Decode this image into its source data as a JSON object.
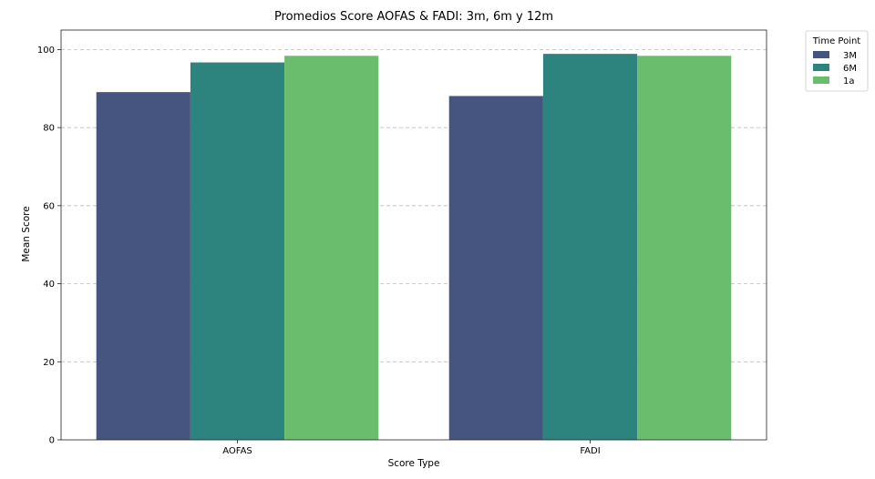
{
  "chart_data": {
    "type": "bar",
    "title": "Promedios Score AOFAS & FADI: 3m, 6m y 12m",
    "xlabel": "Score Type",
    "ylabel": "Mean Score",
    "categories": [
      "AOFAS",
      "FADI"
    ],
    "series": [
      {
        "name": "3M",
        "color": "#46557f",
        "values": [
          89.1,
          88.1
        ]
      },
      {
        "name": "6M",
        "color": "#2d847e",
        "values": [
          96.7,
          98.9
        ]
      },
      {
        "name": "1a",
        "color": "#6bbd6e",
        "values": [
          98.4,
          98.4
        ]
      }
    ],
    "ylim": [
      0,
      105
    ],
    "yticks": [
      0,
      20,
      40,
      60,
      80,
      100
    ],
    "grid": "y-dashed",
    "legend": {
      "title": "Time Point",
      "placement": "outside-top-right"
    }
  }
}
